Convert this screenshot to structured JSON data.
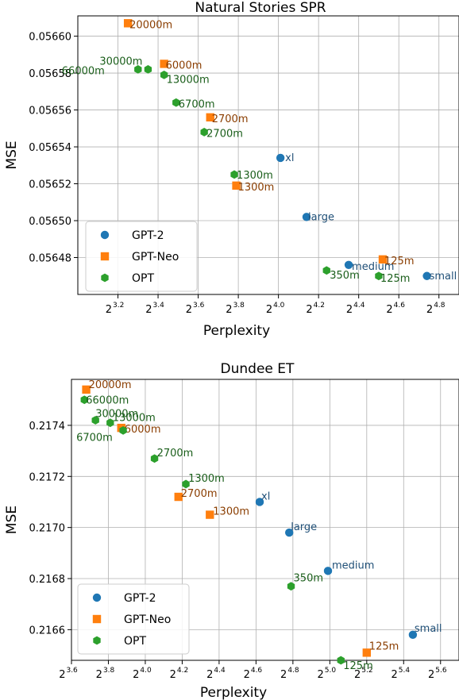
{
  "colors": {
    "GPT-2": "#1f77b4",
    "GPT-Neo": "#ff7f0e",
    "OPT": "#2ca02c"
  },
  "label_colors": {
    "GPT-2": "#1f4f77",
    "GPT-Neo": "#8a3d00",
    "OPT": "#1a5e1a"
  },
  "markers": {
    "GPT-2": "circle",
    "GPT-Neo": "square",
    "OPT": "hexagon"
  },
  "chart_data": [
    {
      "type": "scatter",
      "title": "Natural Stories SPR",
      "xlabel": "Perplexity",
      "ylabel": "MSE",
      "xscale": "log2",
      "xlim_exponent": [
        3.0,
        4.9
      ],
      "ylim": [
        0.05646,
        0.056611
      ],
      "x_ticks_exponent": [
        "3.2",
        "3.4",
        "3.6",
        "3.8",
        "4.0",
        "4.2",
        "4.4",
        "4.6",
        "4.8"
      ],
      "x_tick_base": "2",
      "y_ticks": [
        "0.05648",
        "0.05650",
        "0.05652",
        "0.05654",
        "0.05656",
        "0.05658",
        "0.05660"
      ],
      "grid": true,
      "legend_position": "lower-left",
      "legend": [
        "GPT-2",
        "GPT-Neo",
        "OPT"
      ],
      "series": [
        {
          "name": "GPT-2",
          "points": [
            {
              "label": "xl",
              "x_exp": 4.01,
              "y": 0.056534
            },
            {
              "label": "large",
              "x_exp": 4.14,
              "y": 0.056502
            },
            {
              "label": "medium",
              "x_exp": 4.35,
              "y": 0.056476
            },
            {
              "label": "small",
              "x_exp": 4.74,
              "y": 0.05647
            }
          ]
        },
        {
          "name": "GPT-Neo",
          "points": [
            {
              "label": "20000m",
              "x_exp": 3.25,
              "y": 0.056607
            },
            {
              "label": "6000m",
              "x_exp": 3.43,
              "y": 0.056585
            },
            {
              "label": "2700m",
              "x_exp": 3.66,
              "y": 0.056556
            },
            {
              "label": "1300m",
              "x_exp": 3.79,
              "y": 0.056519
            },
            {
              "label": "125m",
              "x_exp": 4.52,
              "y": 0.056479
            }
          ]
        },
        {
          "name": "OPT",
          "points": [
            {
              "label": "66000m",
              "x_exp": 3.3,
              "y": 0.056582
            },
            {
              "label": "30000m",
              "x_exp": 3.35,
              "y": 0.056582
            },
            {
              "label": "13000m",
              "x_exp": 3.43,
              "y": 0.056579
            },
            {
              "label": "6700m",
              "x_exp": 3.49,
              "y": 0.056564
            },
            {
              "label": "2700m",
              "x_exp": 3.63,
              "y": 0.056548
            },
            {
              "label": "1300m",
              "x_exp": 3.78,
              "y": 0.056525
            },
            {
              "label": "350m",
              "x_exp": 4.24,
              "y": 0.056473
            },
            {
              "label": "125m",
              "x_exp": 4.5,
              "y": 0.05647
            }
          ]
        }
      ]
    },
    {
      "type": "scatter",
      "title": "Dundee ET",
      "xlabel": "Perplexity",
      "ylabel": "MSE",
      "xscale": "log2",
      "xlim_exponent": [
        3.6,
        5.7
      ],
      "ylim": [
        0.21648,
        0.21758
      ],
      "x_ticks_exponent": [
        "3.6",
        "3.8",
        "4.0",
        "4.2",
        "4.4",
        "4.6",
        "4.8",
        "5.0",
        "5.2",
        "5.4",
        "5.6"
      ],
      "x_tick_base": "2",
      "y_ticks": [
        "0.2166",
        "0.2168",
        "0.2170",
        "0.2172",
        "0.2174"
      ],
      "grid": true,
      "legend_position": "lower-left",
      "legend": [
        "GPT-2",
        "GPT-Neo",
        "OPT"
      ],
      "series": [
        {
          "name": "GPT-2",
          "points": [
            {
              "label": "xl",
              "x_exp": 4.62,
              "y": 0.2171
            },
            {
              "label": "large",
              "x_exp": 4.78,
              "y": 0.21698
            },
            {
              "label": "medium",
              "x_exp": 4.99,
              "y": 0.21683
            },
            {
              "label": "small",
              "x_exp": 5.45,
              "y": 0.21658
            }
          ]
        },
        {
          "name": "GPT-Neo",
          "points": [
            {
              "label": "20000m",
              "x_exp": 3.68,
              "y": 0.21754
            },
            {
              "label": "6000m",
              "x_exp": 3.87,
              "y": 0.21739
            },
            {
              "label": "2700m",
              "x_exp": 4.18,
              "y": 0.21712
            },
            {
              "label": "1300m",
              "x_exp": 4.35,
              "y": 0.21705
            },
            {
              "label": "125m",
              "x_exp": 5.2,
              "y": 0.21651
            }
          ]
        },
        {
          "name": "OPT",
          "points": [
            {
              "label": "66000m",
              "x_exp": 3.67,
              "y": 0.2175
            },
            {
              "label": "30000m",
              "x_exp": 3.73,
              "y": 0.21742
            },
            {
              "label": "13000m",
              "x_exp": 3.81,
              "y": 0.21741
            },
            {
              "label": "6700m",
              "x_exp": 3.88,
              "y": 0.21738
            },
            {
              "label": "2700m",
              "x_exp": 4.05,
              "y": 0.21727
            },
            {
              "label": "1300m",
              "x_exp": 4.22,
              "y": 0.21717
            },
            {
              "label": "350m",
              "x_exp": 4.79,
              "y": 0.21677
            },
            {
              "label": "125m",
              "x_exp": 5.06,
              "y": 0.21648
            }
          ]
        }
      ]
    }
  ]
}
